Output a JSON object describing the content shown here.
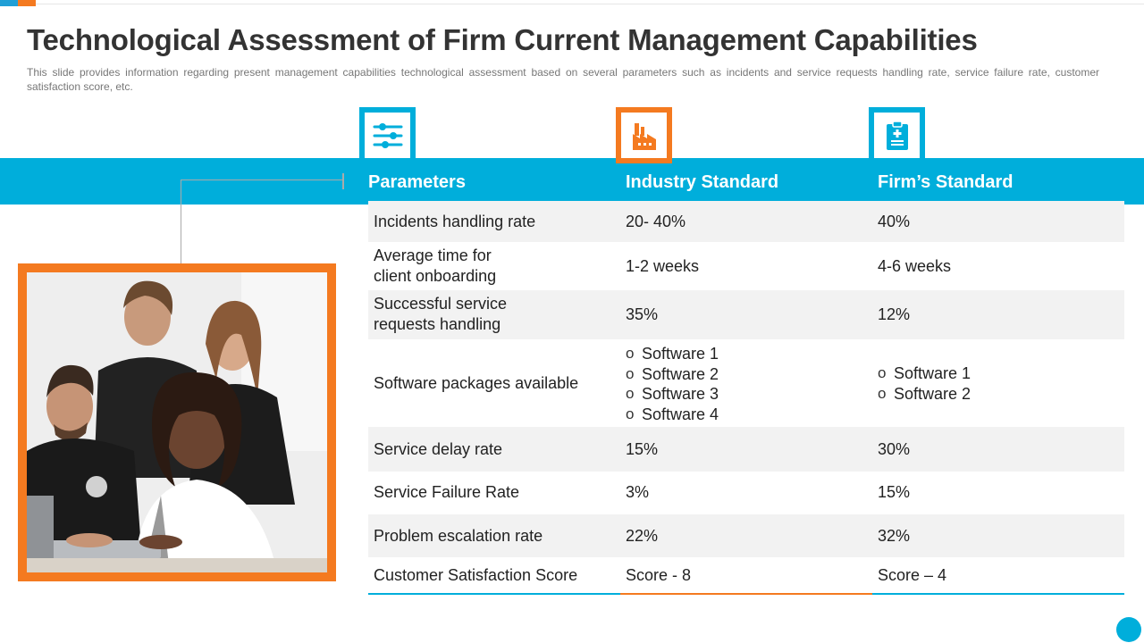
{
  "slide": {
    "title": "Technological Assessment of Firm Current Management Capabilities",
    "subtitle": "This slide provides information regarding present management capabilities technological assessment based on several parameters such as incidents and service requests handling rate, service failure rate, customer satisfaction score, etc."
  },
  "icons": {
    "parameters": "sliders-icon",
    "industry": "factory-icon",
    "firm": "clipboard-icon"
  },
  "colors": {
    "accent_blue": "#00aedb",
    "accent_orange": "#f47a20",
    "row_shade": "#f2f2f2"
  },
  "table": {
    "headers": {
      "parameters": "Parameters",
      "industry": "Industry Standard",
      "firm": "Firm’s Standard"
    },
    "rows": [
      {
        "parameter": "Incidents handling rate",
        "industry": "20- 40%",
        "firm": "40%"
      },
      {
        "parameter_lines": [
          "Average time for",
          "client onboarding"
        ],
        "industry": "1-2 weeks",
        "firm": "4-6 weeks"
      },
      {
        "parameter_lines": [
          "Successful service",
          "requests handling"
        ],
        "industry": "35%",
        "firm": "12%"
      },
      {
        "parameter": "Software packages available",
        "industry_list": [
          "Software 1",
          "Software 2",
          "Software 3",
          "Software 4"
        ],
        "firm_list": [
          "Software 1",
          "Software 2"
        ]
      },
      {
        "parameter": "Service delay rate",
        "industry": "15%",
        "firm": "30%"
      },
      {
        "parameter": "Service Failure Rate",
        "industry": "3%",
        "firm": "15%"
      },
      {
        "parameter": "Problem escalation rate",
        "industry": "22%",
        "firm": "32%"
      },
      {
        "parameter": "Customer Satisfaction Score",
        "industry": "Score - 8",
        "firm": "Score – 4"
      }
    ]
  }
}
